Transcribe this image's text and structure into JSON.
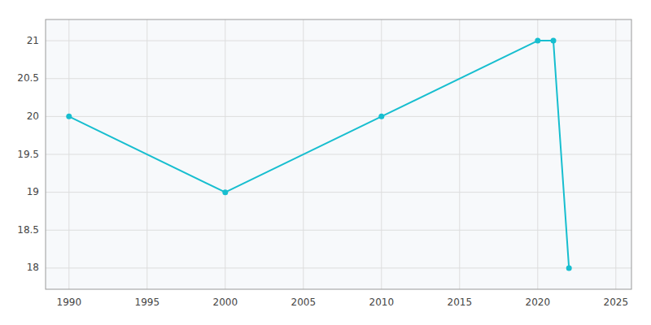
{
  "chart_data": {
    "type": "line",
    "x": [
      1990,
      2000,
      2010,
      2020,
      2021,
      2022
    ],
    "values": [
      20,
      19,
      20,
      21,
      21,
      18
    ],
    "color": "#17becf",
    "marker": "circle",
    "xlim": [
      1988.5,
      2026
    ],
    "ylim": [
      17.72,
      21.28
    ],
    "xticks": [
      1990,
      1995,
      2000,
      2005,
      2010,
      2015,
      2020,
      2025
    ],
    "yticks": [
      18,
      18.5,
      19,
      19.5,
      20,
      20.5,
      21
    ],
    "grid": true
  }
}
